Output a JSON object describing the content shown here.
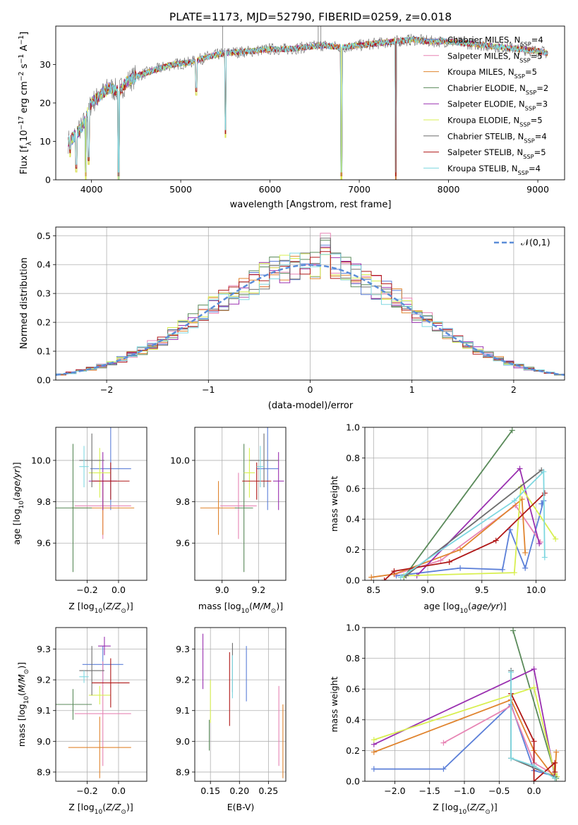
{
  "figure_title": "PLATE=1173, MJD=52790, FIBERID=0259, z=0.018",
  "colors": {
    "Chabrier MILES": "#5b7fd8",
    "Salpeter MILES": "#e784b4",
    "Kroupa MILES": "#e0842e",
    "Chabrier ELODIE": "#5a8a5a",
    "Salpeter ELODIE": "#9a30b0",
    "Kroupa ELODIE": "#d8ef50",
    "Chabrier STELIB": "#6e6e6e",
    "Salpeter STELIB": "#b01818",
    "Kroupa STELIB": "#7ed7e0",
    "normal": "#5b8dd8"
  },
  "chart_data": [
    {
      "id": "spectrum",
      "type": "line",
      "title": "PLATE=1173, MJD=52790, FIBERID=0259, z=0.018",
      "xlabel": "wavelength [Angstrom, rest frame]",
      "ylabel": "Flux [f_λ 10^-17 erg cm^-2 s^-1 A^-1]",
      "xlim": [
        3600,
        9300
      ],
      "ylim": [
        0,
        40
      ],
      "xticks": [
        "4000",
        "5000",
        "6000",
        "7000",
        "8000",
        "9000"
      ],
      "yticks": [
        "0",
        "10",
        "20",
        "30"
      ],
      "grid": false,
      "legend_position": "upper-right",
      "legend": [
        {
          "name": "Chabrier MILES",
          "ssp": "4"
        },
        {
          "name": "Salpeter MILES",
          "ssp": "5"
        },
        {
          "name": "Kroupa MILES",
          "ssp": "5"
        },
        {
          "name": "Chabrier ELODIE",
          "ssp": "2"
        },
        {
          "name": "Salpeter ELODIE",
          "ssp": "3"
        },
        {
          "name": "Kroupa ELODIE",
          "ssp": "5"
        },
        {
          "name": "Chabrier STELIB",
          "ssp": "4"
        },
        {
          "name": "Salpeter STELIB",
          "ssp": "5"
        },
        {
          "name": "Kroupa STELIB",
          "ssp": "4"
        }
      ],
      "continuum": {
        "x": [
          3740,
          3800,
          3900,
          4000,
          4100,
          4200,
          4300,
          4400,
          4500,
          4700,
          4900,
          5100,
          5300,
          5500,
          5800,
          6000,
          6200,
          6400,
          6600,
          6800,
          7000,
          7200,
          7400,
          7600,
          7800,
          8000,
          8200,
          8400,
          8600,
          8800,
          9000,
          9100
        ],
        "y": [
          10,
          11,
          14,
          20,
          22,
          24,
          23,
          25.5,
          27,
          28.5,
          30,
          30.5,
          32,
          33,
          33.5,
          34,
          34,
          34.5,
          35,
          34.5,
          35,
          35.5,
          36,
          36.5,
          36,
          36,
          35.5,
          35,
          34.5,
          34,
          33.5,
          33
        ]
      },
      "dips": [
        {
          "x": 3760,
          "y": 6
        },
        {
          "x": 3830,
          "y": 2
        },
        {
          "x": 3934,
          "y": 0
        },
        {
          "x": 3969,
          "y": 4
        },
        {
          "x": 4305,
          "y": 0
        },
        {
          "x": 5175,
          "y": 22
        },
        {
          "x": 5500,
          "y": 11
        },
        {
          "x": 6800,
          "y": 0
        },
        {
          "x": 7410,
          "y": 0
        }
      ],
      "spikes": [
        {
          "x": 5470,
          "y": 40
        },
        {
          "x": 6540,
          "y": 40
        },
        {
          "x": 6570,
          "y": 40
        },
        {
          "x": 3970,
          "y": 20
        }
      ]
    },
    {
      "id": "residuals",
      "type": "histogram",
      "xlabel": "(data-model)/error",
      "ylabel": "Normed distribution",
      "xlim": [
        -2.5,
        2.5
      ],
      "ylim": [
        0,
        0.53
      ],
      "xticks": [
        "−2",
        "−1",
        "0",
        "1",
        "2"
      ],
      "yticks": [
        "0.0",
        "0.1",
        "0.2",
        "0.3",
        "0.4",
        "0.5"
      ],
      "grid": true,
      "bin_width": 0.1,
      "legend_position": "upper-right",
      "reference_curve": {
        "name": "𝒩(0,1)",
        "mean": 0,
        "sigma": 1
      }
    },
    {
      "id": "age-vs-Z",
      "type": "scatter-errorbar",
      "xlabel": "Z [log10(Z/Z_sun)]",
      "ylabel": "age  [log10(age/yr)]",
      "xlim": [
        -0.4,
        0.18
      ],
      "ylim": [
        9.42,
        10.16
      ],
      "xticks": [
        "−0.2",
        "0.0"
      ],
      "yticks": [
        "9.6",
        "9.8",
        "10.0"
      ],
      "grid": true,
      "points": [
        {
          "series": "Chabrier MILES",
          "x": -0.05,
          "y": 9.96,
          "xerr": 0.13,
          "yerr": 0.2
        },
        {
          "series": "Salpeter MILES",
          "x": -0.1,
          "y": 9.78,
          "xerr": 0.18,
          "yerr": 0.16
        },
        {
          "series": "Kroupa MILES",
          "x": -0.1,
          "y": 9.77,
          "xerr": 0.2,
          "yerr": 0.13
        },
        {
          "series": "Chabrier ELODIE",
          "x": -0.29,
          "y": 9.77,
          "xerr": 0.12,
          "yerr": 0.31
        },
        {
          "series": "Salpeter ELODIE",
          "x": -0.1,
          "y": 9.9,
          "xerr": 0.09,
          "yerr": 0.14
        },
        {
          "series": "Kroupa ELODIE",
          "x": -0.12,
          "y": 9.94,
          "xerr": 0.07,
          "yerr": 0.12
        },
        {
          "series": "Chabrier STELIB",
          "x": -0.17,
          "y": 10.0,
          "xerr": 0.08,
          "yerr": 0.13
        },
        {
          "series": "Salpeter STELIB",
          "x": -0.05,
          "y": 9.9,
          "xerr": 0.12,
          "yerr": 0.09
        },
        {
          "series": "Kroupa STELIB",
          "x": -0.22,
          "y": 9.97,
          "xerr": 0.03,
          "yerr": 0.1
        }
      ]
    },
    {
      "id": "age-vs-mass",
      "type": "scatter-errorbar",
      "xlabel": "mass [log10(M/M_sun)]",
      "ylabel": "",
      "xlim": [
        8.85,
        9.35
      ],
      "ylim": [
        9.42,
        10.16
      ],
      "xticks": [
        "9.0",
        "9.2"
      ],
      "yticks": [
        "9.6",
        "9.8",
        "10.0"
      ],
      "grid": true,
      "points": [
        {
          "series": "Chabrier MILES",
          "x": 9.25,
          "y": 9.96,
          "xerr": 0.06,
          "yerr": 0.2
        },
        {
          "series": "Salpeter MILES",
          "x": 9.09,
          "y": 9.78,
          "xerr": 0.1,
          "yerr": 0.16
        },
        {
          "series": "Kroupa MILES",
          "x": 8.98,
          "y": 9.77,
          "xerr": 0.1,
          "yerr": 0.13
        },
        {
          "series": "Chabrier ELODIE",
          "x": 9.12,
          "y": 9.77,
          "xerr": 0.05,
          "yerr": 0.31
        },
        {
          "series": "Salpeter ELODIE",
          "x": 9.31,
          "y": 9.9,
          "xerr": 0.03,
          "yerr": 0.14
        },
        {
          "series": "Kroupa ELODIE",
          "x": 9.15,
          "y": 9.94,
          "xerr": 0.03,
          "yerr": 0.12
        },
        {
          "series": "Chabrier STELIB",
          "x": 9.23,
          "y": 10.0,
          "xerr": 0.08,
          "yerr": 0.13
        },
        {
          "series": "Salpeter STELIB",
          "x": 9.19,
          "y": 9.9,
          "xerr": 0.08,
          "yerr": 0.09
        },
        {
          "series": "Kroupa STELIB",
          "x": 9.21,
          "y": 9.97,
          "xerr": 0.02,
          "yerr": 0.1
        }
      ]
    },
    {
      "id": "weight-vs-age",
      "type": "line",
      "xlabel": "age  [log10(age/yr)]",
      "ylabel": "mass weight",
      "xlim": [
        8.42,
        10.27
      ],
      "ylim": [
        0,
        1
      ],
      "xticks": [
        "8.5",
        "9.0",
        "9.5",
        "10.0"
      ],
      "yticks": [
        "0.0",
        "0.2",
        "0.4",
        "0.6",
        "0.8",
        "1.0"
      ],
      "grid": true,
      "series": [
        {
          "name": "Chabrier MILES",
          "x": [
            8.71,
            9.3,
            9.69,
            9.76,
            9.9,
            10.07,
            10.05
          ],
          "y": [
            0.03,
            0.08,
            0.07,
            0.33,
            0.08,
            0.52,
            0.5
          ]
        },
        {
          "name": "Salpeter MILES",
          "x": [
            8.7,
            9.12,
            9.81,
            10.04
          ],
          "y": [
            0.04,
            0.13,
            0.49,
            0.25
          ]
        },
        {
          "name": "Kroupa MILES",
          "x": [
            8.48,
            8.69,
            9.3,
            9.87,
            9.9
          ],
          "y": [
            0.02,
            0.04,
            0.2,
            0.53,
            0.18
          ]
        },
        {
          "name": "Chabrier ELODIE",
          "x": [
            8.78,
            9.78
          ],
          "y": [
            0.02,
            0.98
          ]
        },
        {
          "name": "Salpeter ELODIE",
          "x": [
            8.9,
            9.85,
            10.03
          ],
          "y": [
            0.03,
            0.73,
            0.24
          ]
        },
        {
          "name": "Kroupa ELODIE",
          "x": [
            8.78,
            9.8,
            9.86,
            10.18
          ],
          "y": [
            0.03,
            0.05,
            0.61,
            0.27
          ]
        },
        {
          "name": "Chabrier STELIB",
          "x": [
            8.8,
            10.05
          ],
          "y": [
            0.03,
            0.72
          ]
        },
        {
          "name": "Salpeter STELIB",
          "x": [
            8.6,
            8.69,
            9.2,
            9.63,
            10.08
          ],
          "y": [
            0.0,
            0.06,
            0.12,
            0.26,
            0.57
          ]
        },
        {
          "name": "Kroupa STELIB",
          "x": [
            8.75,
            9.8,
            10.07,
            10.08
          ],
          "y": [
            0.02,
            0.52,
            0.71,
            0.15
          ]
        }
      ]
    },
    {
      "id": "mass-vs-Z",
      "type": "scatter-errorbar",
      "xlabel": "Z [log10(Z/Z_sun)]",
      "ylabel": "mass [log10(M/M_sun)]",
      "xlim": [
        -0.4,
        0.18
      ],
      "ylim": [
        8.87,
        9.37
      ],
      "xticks": [
        "−0.2",
        "0.0"
      ],
      "yticks": [
        "8.9",
        "9.0",
        "9.1",
        "9.2",
        "9.3"
      ],
      "grid": true,
      "points": [
        {
          "series": "Chabrier MILES",
          "x": -0.1,
          "y": 9.25,
          "xerr": 0.13,
          "yerr": 0.06
        },
        {
          "series": "Salpeter MILES",
          "x": -0.1,
          "y": 9.09,
          "xerr": 0.18,
          "yerr": 0.17
        },
        {
          "series": "Kroupa MILES",
          "x": -0.12,
          "y": 8.98,
          "xerr": 0.2,
          "yerr": 0.1
        },
        {
          "series": "Chabrier ELODIE",
          "x": -0.29,
          "y": 9.12,
          "xerr": 0.12,
          "yerr": 0.05
        },
        {
          "series": "Salpeter ELODIE",
          "x": -0.09,
          "y": 9.31,
          "xerr": 0.04,
          "yerr": 0.03
        },
        {
          "series": "Kroupa ELODIE",
          "x": -0.12,
          "y": 9.15,
          "xerr": 0.07,
          "yerr": 0.03
        },
        {
          "series": "Chabrier STELIB",
          "x": -0.17,
          "y": 9.23,
          "xerr": 0.08,
          "yerr": 0.08
        },
        {
          "series": "Salpeter STELIB",
          "x": -0.05,
          "y": 9.19,
          "xerr": 0.12,
          "yerr": 0.08
        },
        {
          "series": "Kroupa STELIB",
          "x": -0.22,
          "y": 9.21,
          "xerr": 0.03,
          "yerr": 0.02
        }
      ]
    },
    {
      "id": "mass-vs-ebv",
      "type": "scatter-errorbar",
      "xlabel": "E(B-V)",
      "ylabel": "",
      "xlim": [
        0.123,
        0.28
      ],
      "ylim": [
        8.87,
        9.37
      ],
      "xticks": [
        "0.15",
        "0.20",
        "0.25"
      ],
      "yticks": [
        "8.9",
        "9.0",
        "9.1",
        "9.2",
        "9.3"
      ],
      "grid": true,
      "points": [
        {
          "series": "Chabrier MILES",
          "x": 0.212,
          "y": 9.22,
          "xerr": 0,
          "yerr": 0.09
        },
        {
          "series": "Salpeter MILES",
          "x": 0.268,
          "y": 9.05,
          "xerr": 0,
          "yerr": 0.13
        },
        {
          "series": "Kroupa MILES",
          "x": 0.275,
          "y": 9.0,
          "xerr": 0,
          "yerr": 0.12
        },
        {
          "series": "Chabrier ELODIE",
          "x": 0.148,
          "y": 9.02,
          "xerr": 0,
          "yerr": 0.05
        },
        {
          "series": "Salpeter ELODIE",
          "x": 0.137,
          "y": 9.26,
          "xerr": 0,
          "yerr": 0.09
        },
        {
          "series": "Kroupa ELODIE",
          "x": 0.15,
          "y": 9.13,
          "xerr": 0,
          "yerr": 0.07
        },
        {
          "series": "Chabrier STELIB",
          "x": 0.188,
          "y": 9.24,
          "xerr": 0,
          "yerr": 0.08
        },
        {
          "series": "Salpeter STELIB",
          "x": 0.183,
          "y": 9.17,
          "xerr": 0,
          "yerr": 0.12
        },
        {
          "series": "Kroupa STELIB",
          "x": 0.188,
          "y": 9.21,
          "xerr": 0,
          "yerr": 0.07
        }
      ]
    },
    {
      "id": "weight-vs-Z",
      "type": "line",
      "xlabel": "Z [log10(Z/Z_sun)]",
      "ylabel": "mass weight",
      "xlim": [
        -2.43,
        0.45
      ],
      "ylim": [
        0,
        1
      ],
      "xticks": [
        "−2.0",
        "−1.5",
        "−1.0",
        "−0.5",
        "0.0"
      ],
      "yticks": [
        "0.0",
        "0.2",
        "0.4",
        "0.6",
        "0.8",
        "1.0"
      ],
      "grid": true,
      "series": [
        {
          "name": "Chabrier MILES",
          "x": [
            -2.3,
            -1.3,
            -0.33,
            0.0,
            0.32
          ],
          "y": [
            0.08,
            0.08,
            0.5,
            0.07,
            0.03
          ]
        },
        {
          "name": "Salpeter MILES",
          "x": [
            -1.3,
            -0.33,
            0.0,
            0.3
          ],
          "y": [
            0.25,
            0.49,
            0.12,
            0.04
          ]
        },
        {
          "name": "Kroupa MILES",
          "x": [
            -2.3,
            -0.33,
            0.0,
            0.3,
            0.32
          ],
          "y": [
            0.19,
            0.53,
            0.2,
            0.02,
            0.19
          ]
        },
        {
          "name": "Chabrier ELODIE",
          "x": [
            -0.3,
            0.32
          ],
          "y": [
            0.98,
            0.02
          ]
        },
        {
          "name": "Salpeter ELODIE",
          "x": [
            -2.3,
            0.0,
            0.3
          ],
          "y": [
            0.24,
            0.73,
            0.03
          ]
        },
        {
          "name": "Kroupa ELODIE",
          "x": [
            -2.3,
            0.0,
            0.3,
            0.33
          ],
          "y": [
            0.27,
            0.61,
            0.05,
            0.03
          ]
        },
        {
          "name": "Chabrier STELIB",
          "x": [
            -0.33,
            -0.33,
            0.3
          ],
          "y": [
            0.72,
            0.15,
            0.03
          ]
        },
        {
          "name": "Salpeter STELIB",
          "x": [
            -0.33,
            0.0,
            0.0,
            0.3,
            0.3
          ],
          "y": [
            0.57,
            0.26,
            0.0,
            0.12,
            0.06
          ]
        },
        {
          "name": "Kroupa STELIB",
          "x": [
            -0.33,
            -0.33,
            0.0,
            0.3
          ],
          "y": [
            0.71,
            0.15,
            0.1,
            0.02
          ]
        }
      ]
    }
  ]
}
